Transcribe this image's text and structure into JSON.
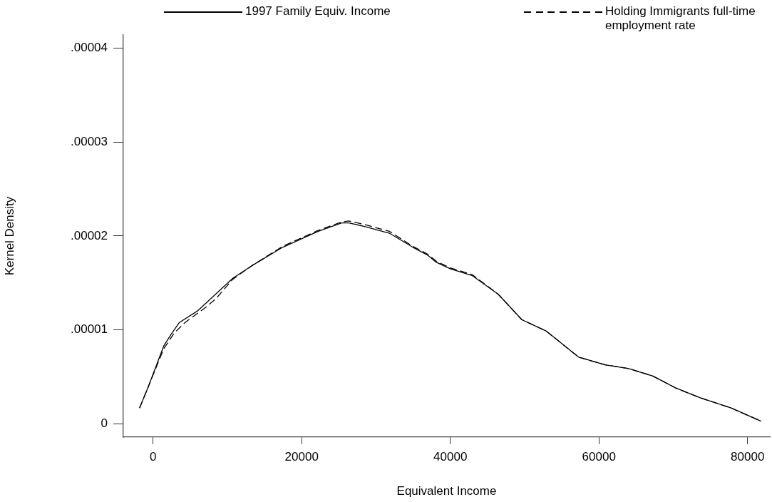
{
  "chart_data": {
    "type": "line",
    "xlabel": "Equivalent Income",
    "ylabel": "Kernel Density",
    "xlim": [
      -4000,
      83000
    ],
    "xticks": [
      0,
      20000,
      40000,
      60000,
      80000
    ],
    "ylim": [
      -1.4e-06,
      4.14e-05
    ],
    "yticks": [
      {
        "value": 0,
        "label": "0"
      },
      {
        "value": 1e-05,
        "label": ".00001"
      },
      {
        "value": 2e-05,
        "label": ".00002"
      },
      {
        "value": 3e-05,
        "label": ".00003"
      },
      {
        "value": 4e-05,
        "label": ".00004"
      }
    ],
    "grid": false,
    "legend": "top",
    "marker": "none",
    "series": [
      {
        "name": "1997 Family Equiv. Income",
        "color": "#000000",
        "line_style": "solid",
        "x": [
          -1820,
          -670,
          1437,
          2395,
          3545,
          5940,
          8140,
          10730,
          13220,
          17440,
          22230,
          25390,
          26350,
          28550,
          31800,
          34970,
          36880,
          38130,
          40040,
          42920,
          46460,
          49620,
          52880,
          57290,
          60830,
          63990,
          67250,
          70410,
          73570,
          77790,
          81810
        ],
        "values": [
          1.7e-06,
          3.9e-06,
          8.3e-06,
          9.5e-06,
          1.08e-05,
          1.2e-05,
          1.36e-05,
          1.55e-05,
          1.68e-05,
          1.88e-05,
          2.05e-05,
          2.14e-05,
          2.14e-05,
          2.1e-05,
          2.03e-05,
          1.88e-05,
          1.8e-05,
          1.72e-05,
          1.65e-05,
          1.58e-05,
          1.38e-05,
          1.11e-05,
          9.9e-06,
          7.1e-06,
          6.3e-06,
          5.9e-06,
          5.1e-06,
          3.8e-06,
          2.8e-06,
          1.7e-06,
          3e-07
        ]
      },
      {
        "name": "Holding Immigrants full-time employment rate",
        "color": "#000000",
        "line_style": "dashed",
        "x": [
          -1820,
          -670,
          1437,
          2870,
          4310,
          6900,
          8430,
          10730,
          13220,
          17440,
          22230,
          25390,
          26350,
          28550,
          31800,
          34970,
          36880,
          38130,
          40040,
          42920,
          46460,
          49620,
          52880,
          57290,
          60830,
          63990,
          67250,
          70410,
          73570,
          77790,
          81810
        ],
        "values": [
          1.7e-06,
          3.9e-06,
          8e-06,
          9.7e-06,
          1.08e-05,
          1.23e-05,
          1.33e-05,
          1.54e-05,
          1.68e-05,
          1.89e-05,
          2.06e-05,
          2.15e-05,
          2.16e-05,
          2.12e-05,
          2.05e-05,
          1.89e-05,
          1.81e-05,
          1.73e-05,
          1.66e-05,
          1.59e-05,
          1.38e-05,
          1.11e-05,
          9.9e-06,
          7.1e-06,
          6.3e-06,
          5.9e-06,
          5.1e-06,
          3.8e-06,
          2.8e-06,
          1.7e-06,
          3e-07
        ]
      }
    ]
  }
}
